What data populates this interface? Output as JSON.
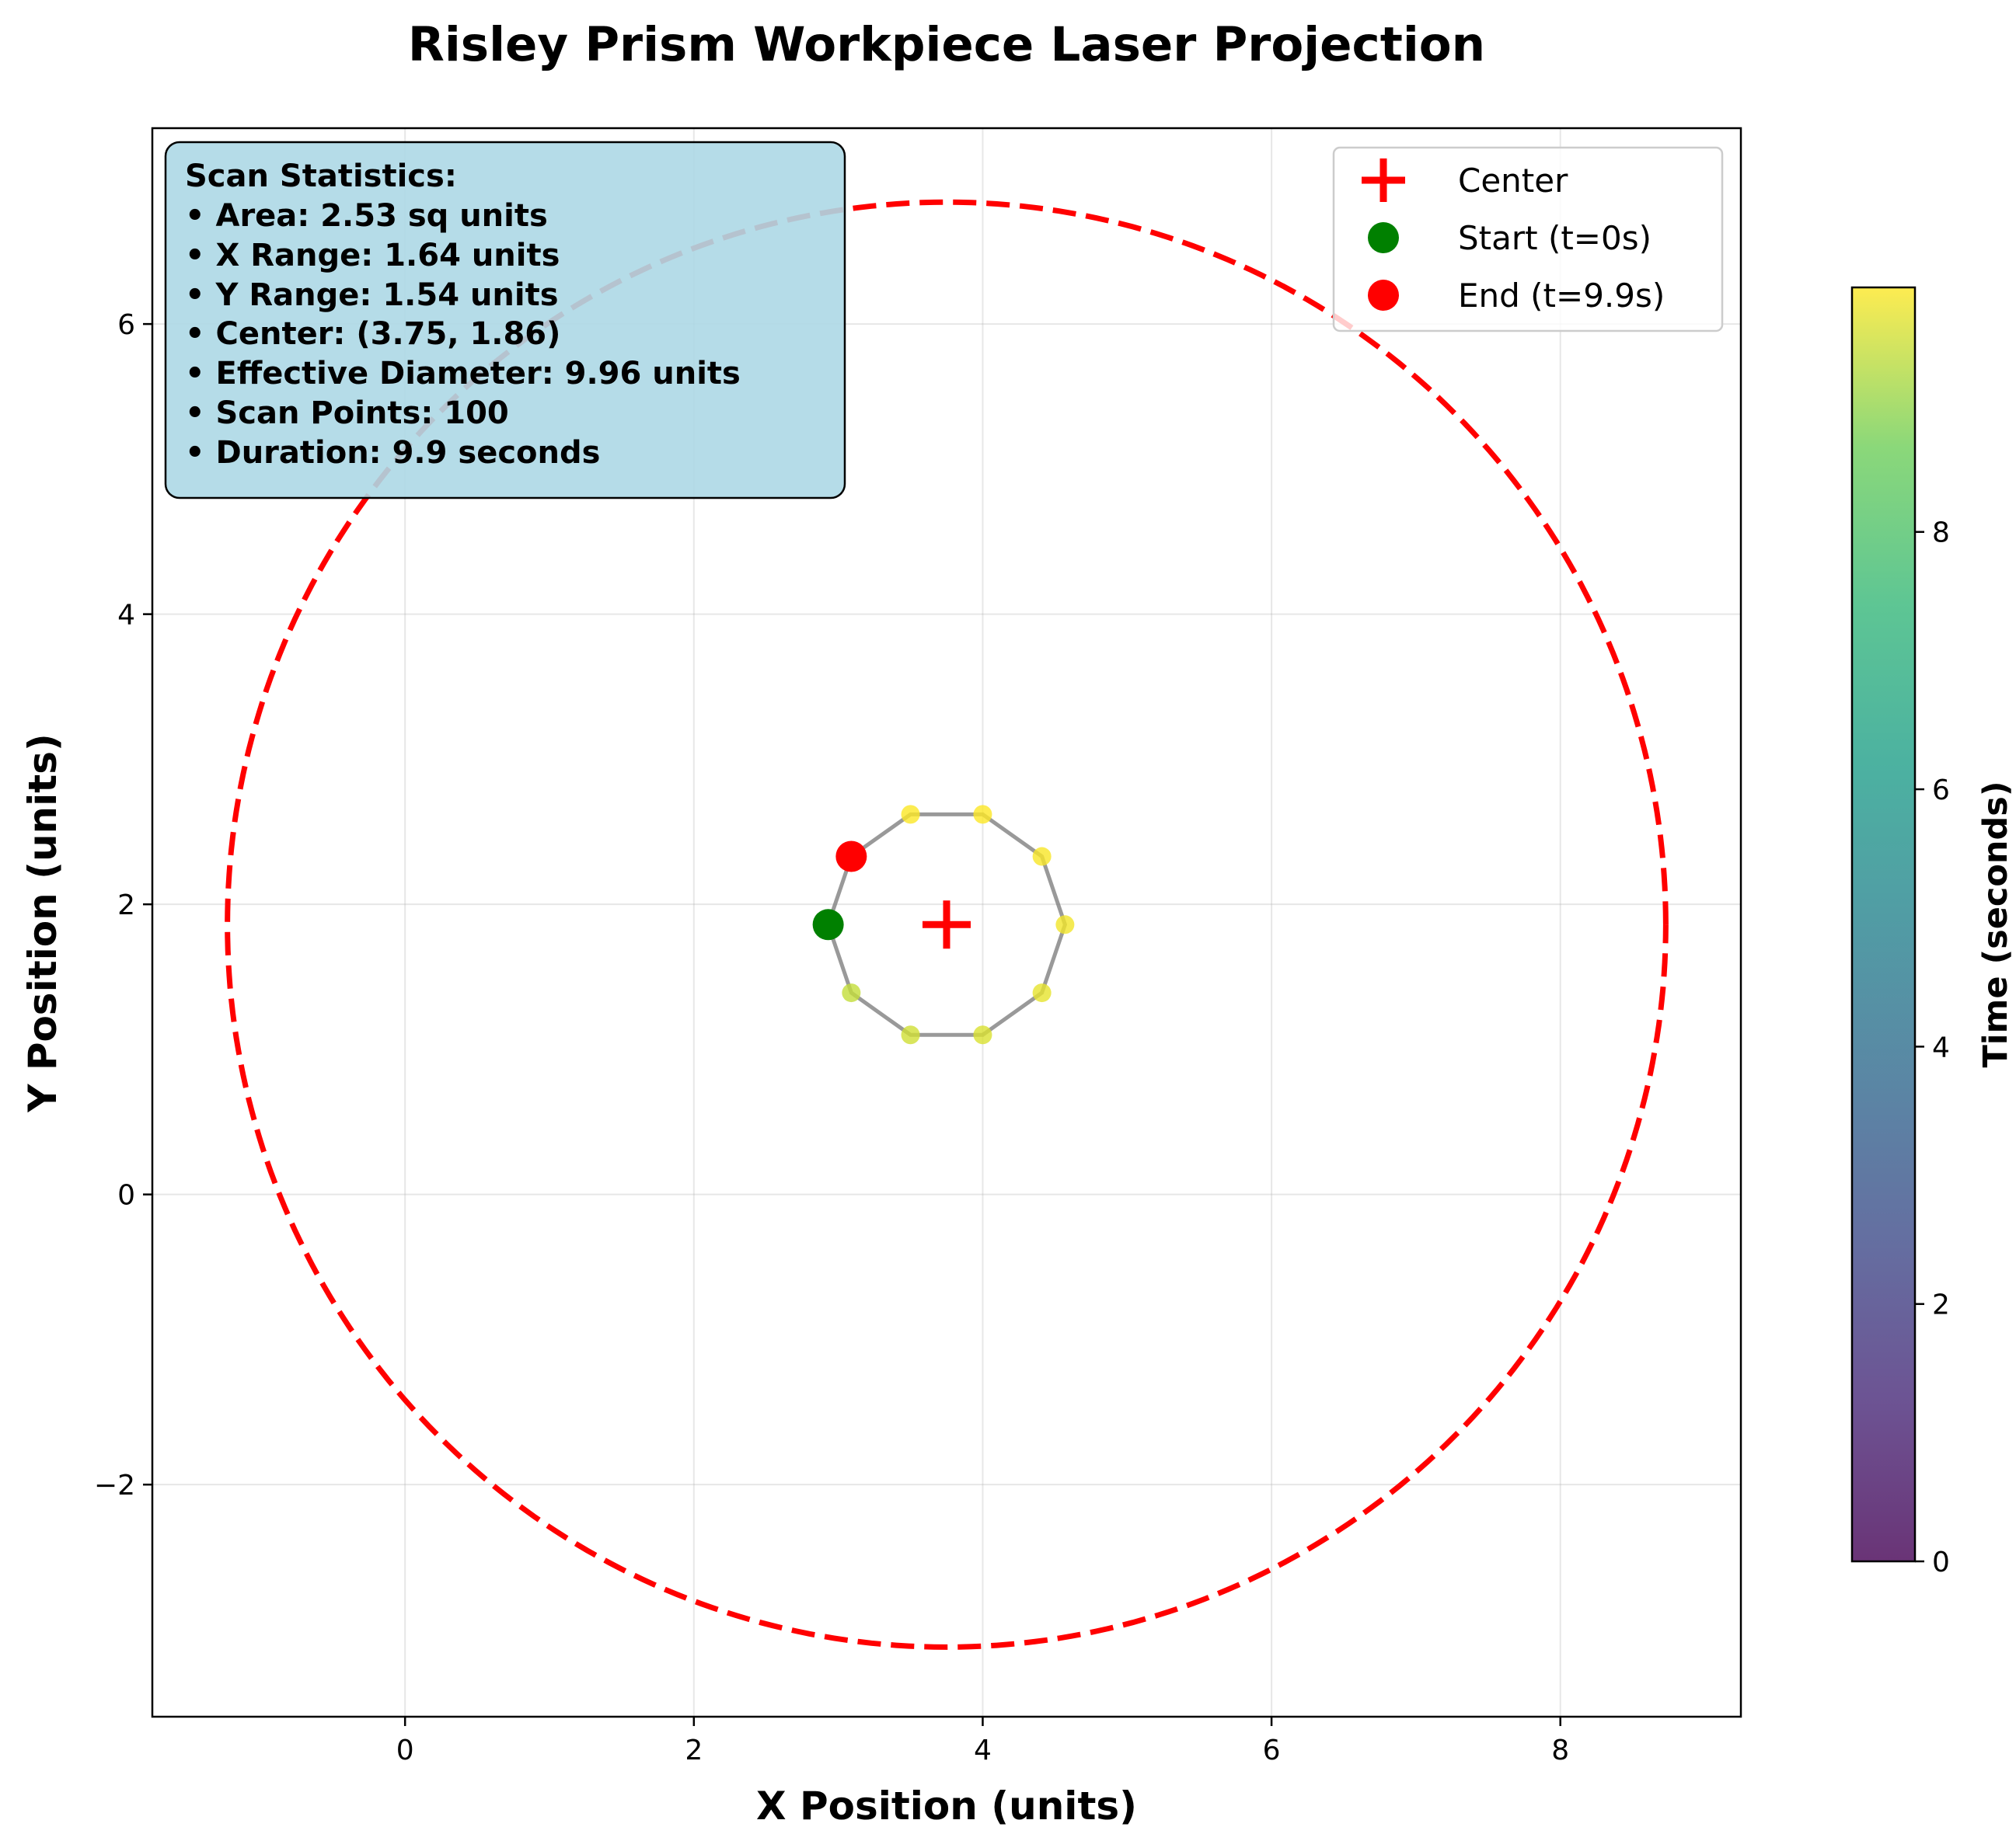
{
  "chart_data": {
    "type": "scatter",
    "title": "Risley Prism Workpiece Laser Projection",
    "xlabel": "X Position (units)",
    "ylabel": "Y Position (units)",
    "xlim": [
      -1.75,
      9.25
    ],
    "ylim": [
      -3.6,
      7.35
    ],
    "xticks": [
      0,
      2,
      4,
      6,
      8
    ],
    "yticks": [
      -2,
      0,
      2,
      4,
      6
    ],
    "grid": true,
    "scan_path": {
      "x": [
        2.93,
        3.09,
        3.5,
        4.0,
        4.41,
        4.57,
        4.41,
        4.0,
        3.5,
        3.09,
        2.93
      ],
      "y": [
        1.86,
        1.39,
        1.1,
        1.1,
        1.39,
        1.86,
        2.33,
        2.62,
        2.62,
        2.33,
        1.86
      ],
      "color": "#808080"
    },
    "scan_points": {
      "x": [
        3.09,
        3.5,
        4.0,
        4.41,
        4.57,
        4.41,
        4.0,
        3.5
      ],
      "y": [
        1.39,
        1.1,
        1.1,
        1.39,
        1.86,
        2.33,
        2.62,
        2.62
      ],
      "time": [
        9.4,
        9.5,
        9.6,
        9.7,
        9.8,
        9.85,
        9.9,
        9.88
      ]
    },
    "center": {
      "x": 3.75,
      "y": 1.86,
      "label": "Center",
      "color": "#ff0000"
    },
    "start": {
      "x": 2.93,
      "y": 1.86,
      "label": "Start (t=0s)",
      "color": "#008000"
    },
    "end": {
      "x": 3.09,
      "y": 2.33,
      "label": "End (t=9.9s)",
      "color": "#ff0000"
    },
    "effective_circle": {
      "cx": 3.75,
      "cy": 1.86,
      "r": 4.98,
      "color": "#ff0000",
      "style": "dashed"
    },
    "legend": {
      "placement": "upper right",
      "entries": [
        "Center",
        "Start (t=0s)",
        "End (t=9.9s)"
      ]
    },
    "stats_box": {
      "lines": [
        "Scan Statistics:",
        "• Area: 2.53 sq units",
        "• X Range: 1.64 units",
        "• Y Range: 1.54 units",
        "• Center: (3.75, 1.86)",
        "• Effective Diameter: 9.96 units",
        "• Scan Points: 100",
        "• Duration: 9.9 seconds"
      ],
      "background": "#add8e6"
    },
    "colorbar": {
      "label": "Time (seconds)",
      "min": 0,
      "max": 9.9,
      "ticks": [
        0,
        2,
        4,
        6,
        8
      ],
      "colormap": "viridis"
    }
  }
}
